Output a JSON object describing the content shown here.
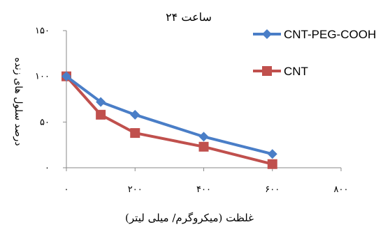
{
  "chart_data": {
    "type": "line",
    "title": "۲۴ ساعت",
    "xlabel": "غلظت (میکروگرم/ میلی لیتر)",
    "ylabel": "درصد سلول های زنده",
    "x_ticks": [
      0,
      200,
      400,
      600,
      800
    ],
    "x_tick_labels": [
      "۰",
      "۲۰۰",
      "۴۰۰",
      "۶۰۰",
      "۸۰۰"
    ],
    "y_ticks": [
      0,
      50,
      100,
      150
    ],
    "y_tick_labels": [
      "۰",
      "۵۰",
      "۱۰۰",
      "۱۵۰"
    ],
    "xlim": [
      0,
      800
    ],
    "ylim": [
      0,
      150
    ],
    "grid": false,
    "legend_position": "right",
    "series": [
      {
        "name": "CNT-PEG-COOH",
        "color": "#4A7EC7",
        "marker": "diamond",
        "x": [
          0,
          100,
          200,
          400,
          600
        ],
        "y": [
          100,
          72,
          58,
          34,
          15
        ]
      },
      {
        "name": "CNT",
        "color": "#C0504D",
        "marker": "square",
        "x": [
          0,
          100,
          200,
          400,
          600
        ],
        "y": [
          100,
          58,
          38,
          23,
          4
        ]
      }
    ]
  }
}
